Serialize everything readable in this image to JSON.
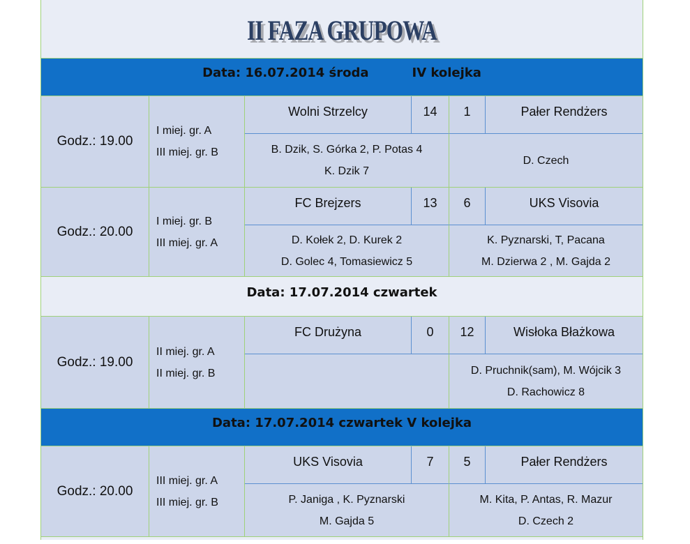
{
  "title": "II  FAZA GRUPOWA",
  "sections": [
    {
      "type": "header",
      "date": "Data:  16.07.2014 środa",
      "round": "IV kolejka"
    },
    {
      "type": "match",
      "time": "Godz.: 19.00",
      "groups": [
        "I miej. gr. A",
        "III miej. gr. B"
      ],
      "home": "Wolni Strzelcy",
      "home_score": "14",
      "away_score": "1",
      "away": "Pałer Rendżers",
      "home_scorers": [
        "B. Dzik, S. Górka 2, P. Potas 4",
        "K. Dzik 7"
      ],
      "away_scorers": [
        "D. Czech"
      ],
      "h": 131
    },
    {
      "type": "match",
      "time": "Godz.: 20.00",
      "groups": [
        "I miej. gr. B",
        "III miej. gr. A"
      ],
      "home": "FC Brejzers",
      "home_score": "13",
      "away_score": "6",
      "away": "UKS Visovia",
      "home_scorers": [
        "D. Kołek 2, D. Kurek 2",
        "D. Golec 4, Tomasiewicz 5"
      ],
      "away_scorers": [
        "K. Pyznarski, T, Pacana",
        "M. Dzierwa 2 , M. Gajda 2"
      ],
      "h": 128
    },
    {
      "type": "date",
      "date": "Data:  17.07.2014 czwartek"
    },
    {
      "type": "match",
      "time": "Godz.:  19.00",
      "groups": [
        "II miej. gr. A",
        "II miej. gr. B"
      ],
      "home": "FC Drużyna",
      "home_score": "0",
      "away_score": "12",
      "away": "Wisłoka Błażkowa",
      "home_scorers": [],
      "away_scorers": [
        "D. Pruchnik(sam), M. Wójcik 3",
        "D. Rachowicz 8"
      ],
      "h": 132
    },
    {
      "type": "header",
      "date": "Data:  17.07.2014 czwartek V kolejka",
      "round": ""
    },
    {
      "type": "match",
      "time": "Godz.: 20.00",
      "groups": [
        "III miej. gr. A",
        "III miej. gr. B"
      ],
      "home": "UKS Visovia",
      "home_score": "7",
      "away_score": "5",
      "away": "Pałer Rendżers",
      "home_scorers": [
        "P. Janiga , K. Pyznarski",
        "M. Gajda 5"
      ],
      "away_scorers": [
        "M. Kita, P. Antas, R. Mazur",
        "D. Czech 2"
      ],
      "h": 130
    }
  ],
  "colors": {
    "header_blue": "#1170c8",
    "cell": "#cdd6ea",
    "background": "#e9edf6",
    "border_green": "#9fd17a"
  }
}
